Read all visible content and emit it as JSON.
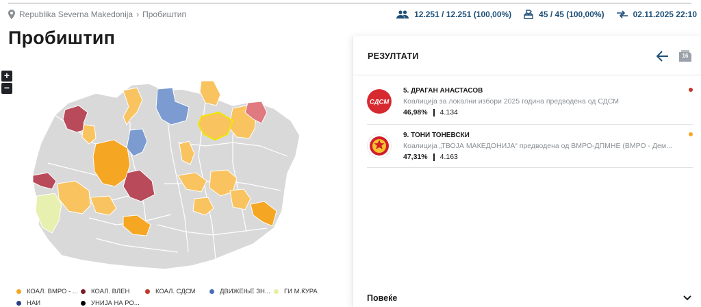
{
  "breadcrumb": {
    "country": "Republika Severna Makedonija",
    "municipality": "Пробиштип"
  },
  "stats": {
    "voters": "12.251 / 12.251 (100,00%)",
    "stations": "45 / 45 (100,00%)",
    "updated": "02.11.2025 22:10"
  },
  "page_title": "Пробиштип",
  "zoom": {
    "in": "+",
    "out": "−"
  },
  "legend": [
    {
      "label": "КОАЛ. ВМРО - ...",
      "color": "#f5a623"
    },
    {
      "label": "КОАЛ. ВЛЕН",
      "color": "#7a1f2b"
    },
    {
      "label": "КОАЛ. СДСМ",
      "color": "#c0392b"
    },
    {
      "label": "ДВИЖЕЊЕ ЗН...",
      "color": "#4a6fb5"
    },
    {
      "label": "ГИ М.ЌУРА",
      "color": "#e8f0a0"
    },
    {
      "label": "НАИ",
      "color": "#2c3e8c"
    },
    {
      "label": "УНИЈА НА РО...",
      "color": "#000000"
    }
  ],
  "panel": {
    "title": "РЕЗУЛТАТИ",
    "round_badge": "16",
    "results": [
      {
        "name": "5. ДРАГАН АНАСТАСОВ",
        "coalition": "Коалиција за локални избори 2025 година предводена од СДСМ",
        "percent": "46,98%",
        "votes": "4.134",
        "logo_text": "СДСМ",
        "dot_color": "#c0392b"
      },
      {
        "name": "9. ТОНИ ТОНЕВСКИ",
        "coalition": "Коалиција „ТВОЈА МАКЕДОНИЈА“ предводена од ВМРО-ДПМНЕ (ВМРО - Дем...",
        "percent": "47,31%",
        "votes": "4.163",
        "dot_color": "#f5a623"
      }
    ],
    "more_label": "Повеќе"
  }
}
